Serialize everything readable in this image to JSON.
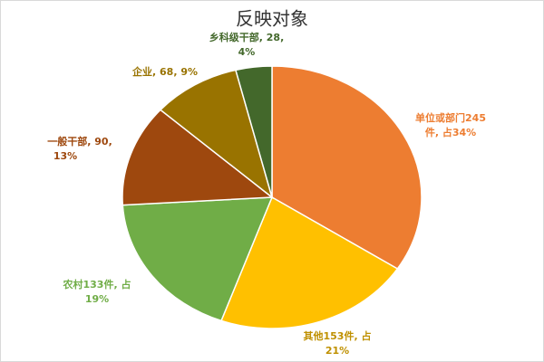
{
  "chart_data": {
    "type": "pie",
    "title": "反映对象",
    "categories": [
      "单位或部门",
      "其他",
      "农村",
      "一般干部",
      "企业",
      "乡科级干部"
    ],
    "values": [
      245,
      153,
      133,
      90,
      68,
      28
    ],
    "value_labels": [
      [
        "单位或部门245",
        "件, 占34%"
      ],
      [
        "其他153件, 占",
        "21%"
      ],
      [
        "农村133件, 占",
        "19%"
      ],
      [
        "一般干部, 90,",
        "13%"
      ],
      [
        "企业, 68, 9%"
      ],
      [
        "乡科级干部, 28,",
        "4%"
      ]
    ],
    "colors": [
      "#ED7D31",
      "#FFC000",
      "#70AD47",
      "#9E480E",
      "#997300",
      "#43682B"
    ],
    "label_colors": [
      "#ED7D31",
      "#BF9000",
      "#70AD47",
      "#9E480E",
      "#997300",
      "#43682B"
    ]
  }
}
